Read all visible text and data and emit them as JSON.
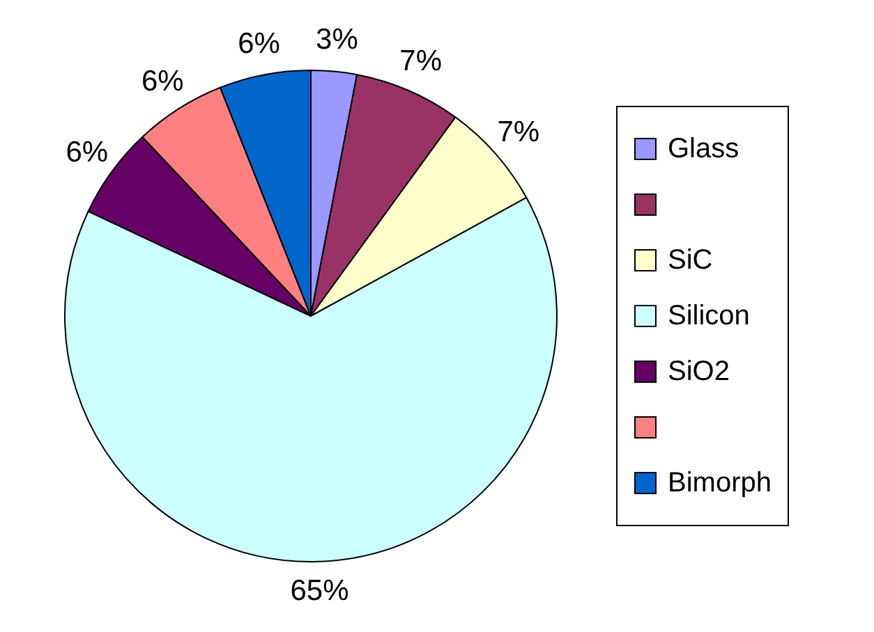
{
  "chart_data": {
    "type": "pie",
    "categories": [
      "Glass",
      null,
      "SiC",
      "Silicon",
      "SiO2",
      null,
      "Bimorph"
    ],
    "values": [
      3,
      7,
      7,
      65,
      6,
      6,
      6
    ],
    "colors": [
      "#9999ff",
      "#993366",
      "#ffffcc",
      "#ccffff",
      "#660066",
      "#ff8080",
      "#0066cc"
    ],
    "value_labels": [
      "3%",
      "7%",
      "7%",
      "65%",
      "6%",
      "6%",
      "6%"
    ],
    "legend": "right"
  }
}
